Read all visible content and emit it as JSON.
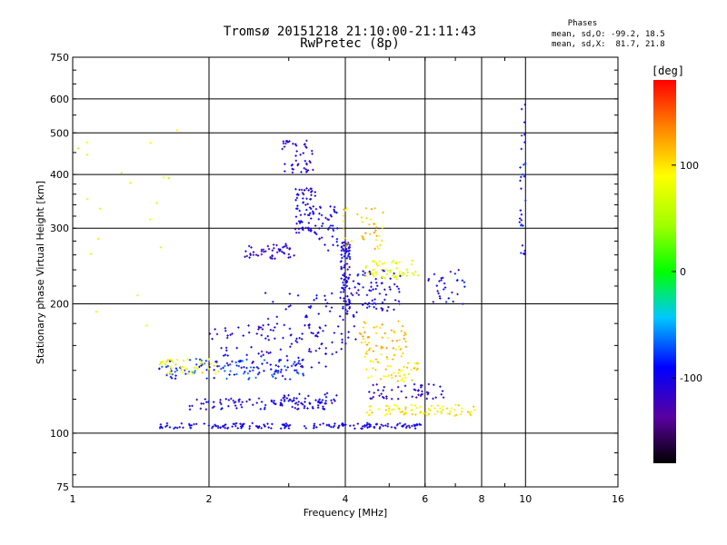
{
  "header": {
    "title_line1": "Tromsø 20151218 21:10:00-21:11:43",
    "title_line2": "RwPretec (8p)",
    "stats_title": "Phases",
    "stats_line1": "mean, sd,O: -99.2, 18.5",
    "stats_line2": "mean, sd,X:  81.7, 21.8"
  },
  "chart_data": {
    "type": "scatter",
    "title": "Tromsø 20151218 21:10:00-21:11:43",
    "subtitle": "RwPretec (8p)",
    "xlabel": "Frequency [MHz]",
    "ylabel": "Stationary phase Virtual Height [km]",
    "x_scale": "log",
    "y_scale": "log",
    "xlim": [
      1,
      16
    ],
    "ylim": [
      75,
      750
    ],
    "x_ticks": [
      1,
      2,
      4,
      6,
      8,
      10,
      16
    ],
    "y_ticks": [
      75,
      100,
      200,
      300,
      400,
      500,
      600,
      750
    ],
    "grid": true,
    "colorbar": {
      "label": "[deg]",
      "range": [
        -180,
        180
      ],
      "ticks": [
        100,
        0,
        -100
      ]
    },
    "colors": {
      "plus100": "#ffff00",
      "zero": "#00ff00",
      "minus100": "#0000ff"
    },
    "traces": [
      {
        "phase": -100,
        "x_range": [
          1.55,
          5.9
        ],
        "height": 104,
        "count": 170,
        "spread": 0.015
      },
      {
        "phase": -100,
        "x_range": [
          1.8,
          3.8
        ],
        "height": 117,
        "count": 90,
        "spread": 0.03
      },
      {
        "phase": -105,
        "x_range": [
          2.9,
          3.9
        ],
        "height": 120,
        "count": 30,
        "spread": 0.035
      },
      {
        "phase": -80,
        "x_range": [
          1.55,
          3.3
        ],
        "height": 141,
        "count": 120,
        "spread": 0.055
      },
      {
        "phase": 90,
        "x_range": [
          1.55,
          2.1
        ],
        "height": 143,
        "count": 50,
        "spread": 0.04
      },
      {
        "phase": -105,
        "x_range": [
          2.0,
          3.95
        ],
        "height": 160,
        "count": 100,
        "spread": 0.12
      },
      {
        "phase": -100,
        "x_range": [
          2.6,
          4.3
        ],
        "height": 185,
        "count": 60,
        "spread": 0.14
      },
      {
        "phase": -110,
        "x_range": [
          2.4,
          3.1
        ],
        "height": 265,
        "count": 50,
        "spread": 0.04
      },
      {
        "phase": -105,
        "x_range": [
          3.1,
          3.45
        ],
        "height": 330,
        "count": 70,
        "spread": 0.12
      },
      {
        "phase": -110,
        "x_range": [
          2.9,
          3.4
        ],
        "height": 440,
        "count": 45,
        "spread": 0.09
      },
      {
        "phase": -100,
        "x_range": [
          3.4,
          3.85
        ],
        "height": 300,
        "count": 40,
        "spread": 0.12
      },
      {
        "phase": -100,
        "x_range": [
          3.9,
          4.1
        ],
        "height": 230,
        "count": 90,
        "spread": 0.2
      },
      {
        "phase": -100,
        "x_range": [
          4.1,
          5.3
        ],
        "height": 215,
        "count": 70,
        "spread": 0.11
      },
      {
        "phase": 110,
        "x_range": [
          3.95,
          4.9
        ],
        "height": 300,
        "count": 40,
        "spread": 0.12
      },
      {
        "phase": 80,
        "x_range": [
          4.4,
          5.8
        ],
        "height": 240,
        "count": 60,
        "spread": 0.05
      },
      {
        "phase": 110,
        "x_range": [
          4.3,
          5.5
        ],
        "height": 165,
        "count": 60,
        "spread": 0.1
      },
      {
        "phase": 100,
        "x_range": [
          4.4,
          5.8
        ],
        "height": 140,
        "count": 50,
        "spread": 0.06
      },
      {
        "phase": 95,
        "x_range": [
          4.4,
          7.8
        ],
        "height": 113,
        "count": 80,
        "spread": 0.03
      },
      {
        "phase": -110,
        "x_range": [
          4.5,
          6.6
        ],
        "height": 125,
        "count": 50,
        "spread": 0.04
      },
      {
        "phase": -100,
        "x_range": [
          6.1,
          7.4
        ],
        "height": 220,
        "count": 30,
        "spread": 0.1
      },
      {
        "phase": -95,
        "x_range": [
          9.7,
          10.0
        ],
        "height": 400,
        "count": 30,
        "spread": 0.45
      },
      {
        "phase": 80,
        "x_range": [
          1.0,
          1.7
        ],
        "height": 300,
        "count": 20,
        "spread": 0.6
      }
    ]
  }
}
